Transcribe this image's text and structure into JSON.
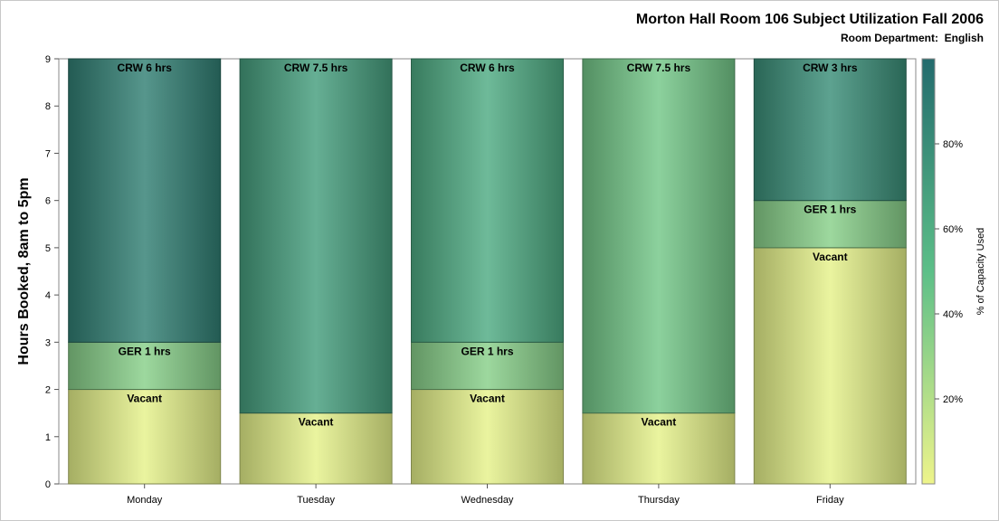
{
  "title": "Morton Hall Room 106 Subject Utilization Fall 2006",
  "subtitle_label": "Room Department:",
  "subtitle_value": "English",
  "chart_data": {
    "type": "bar",
    "stacked": true,
    "categories": [
      "Monday",
      "Tuesday",
      "Wednesday",
      "Thursday",
      "Friday"
    ],
    "ylabel": "Hours Booked, 8am to 5pm",
    "ylim": [
      0,
      9
    ],
    "yticks": [
      "0",
      "1",
      "2",
      "3",
      "4",
      "5",
      "6",
      "7",
      "8",
      "9"
    ],
    "colorbar": {
      "label": "% of Capacity Used",
      "ticks": [
        "20%",
        "40%",
        "60%",
        "80%"
      ],
      "tick_values": [
        20,
        40,
        60,
        80
      ],
      "range": [
        0,
        100
      ],
      "low_color": "#eef48a",
      "mid_color": "#5cbf88",
      "high_color": "#236b6d"
    },
    "bars": [
      {
        "category": "Monday",
        "segments": [
          {
            "label": "Vacant",
            "value": 2,
            "pct": 3
          },
          {
            "label": "GER 1 hrs",
            "value": 1,
            "pct": 35
          },
          {
            "label": "CRW 6 hrs",
            "value": 6,
            "pct": 88
          }
        ]
      },
      {
        "category": "Tuesday",
        "segments": [
          {
            "label": "Vacant",
            "value": 1.5,
            "pct": 3
          },
          {
            "label": "CRW 7.5 hrs",
            "value": 7.5,
            "pct": 70
          }
        ]
      },
      {
        "category": "Wednesday",
        "segments": [
          {
            "label": "Vacant",
            "value": 2,
            "pct": 3
          },
          {
            "label": "GER 1 hrs",
            "value": 1,
            "pct": 35
          },
          {
            "label": "CRW 6 hrs",
            "value": 6,
            "pct": 62
          }
        ]
      },
      {
        "category": "Thursday",
        "segments": [
          {
            "label": "Vacant",
            "value": 1.5,
            "pct": 3
          },
          {
            "label": "CRW 7.5 hrs",
            "value": 7.5,
            "pct": 42
          }
        ]
      },
      {
        "category": "Friday",
        "segments": [
          {
            "label": "Vacant",
            "value": 5,
            "pct": 3
          },
          {
            "label": "GER 1 hrs",
            "value": 1,
            "pct": 35
          },
          {
            "label": "CRW 3 hrs",
            "value": 3,
            "pct": 80
          }
        ]
      }
    ]
  }
}
